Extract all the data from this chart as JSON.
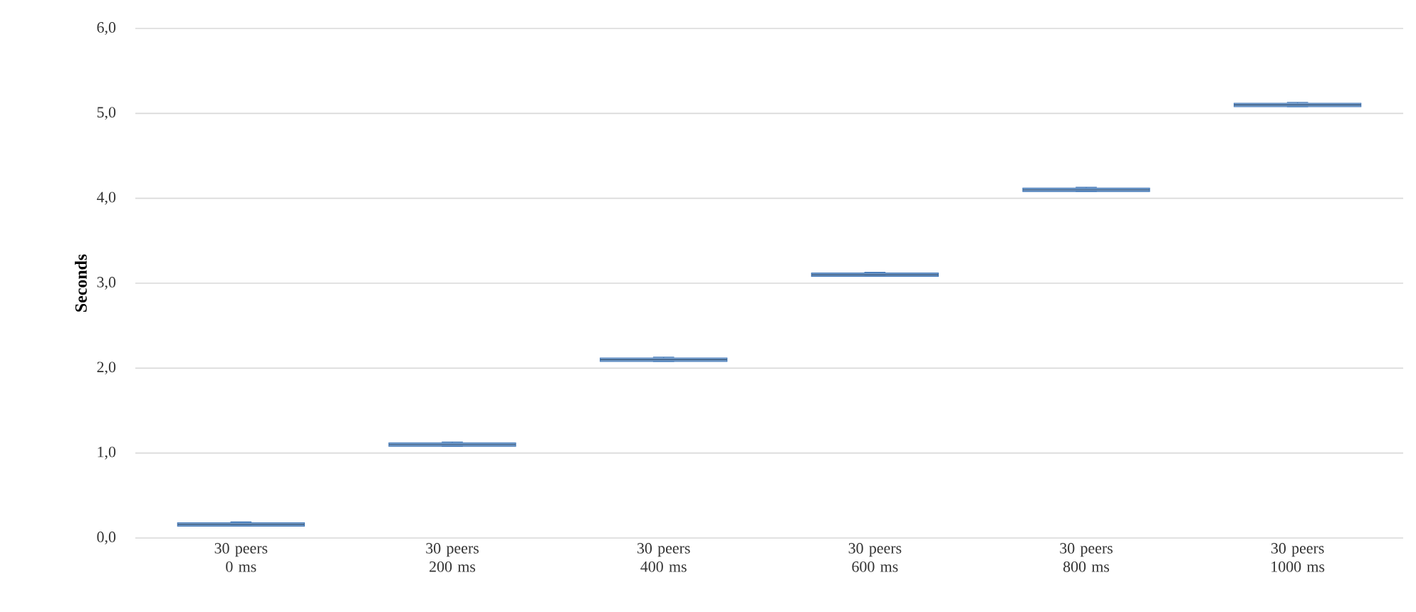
{
  "chart_data": {
    "type": "box",
    "ylabel": "**Seconds**",
    "categories": [
      "30 peers 0 ms",
      "30 peers 200 ms",
      "30 peers 400 ms",
      "30 peers 600 ms",
      "30 peers 800 ms",
      "30 peers 1000 ms"
    ],
    "color": "#4a7ebb",
    "boxes": [
      {
        "low": 0.14,
        "q1": 0.14,
        "median": 0.16,
        "q3": 0.18,
        "high": 0.19
      },
      {
        "low": 1.08,
        "q1": 1.08,
        "median": 1.1,
        "q3": 1.12,
        "high": 1.13
      },
      {
        "low": 2.08,
        "q1": 2.08,
        "median": 2.1,
        "q3": 2.12,
        "high": 2.13
      },
      {
        "low": 3.08,
        "q1": 3.08,
        "median": 3.1,
        "q3": 3.12,
        "high": 3.13
      },
      {
        "low": 4.08,
        "q1": 4.08,
        "median": 4.1,
        "q3": 4.12,
        "high": 4.13
      },
      {
        "low": 5.08,
        "q1": 5.08,
        "median": 5.1,
        "q3": 5.12,
        "high": 5.13
      }
    ],
    "ylim": [
      0,
      6
    ],
    "yticks": [
      {
        "value": 0,
        "label": "0,0"
      },
      {
        "value": 1,
        "label": "1,0"
      },
      {
        "value": 2,
        "label": "2,0"
      },
      {
        "value": 3,
        "label": "3,0"
      },
      {
        "value": 4,
        "label": "4,0"
      },
      {
        "value": 5,
        "label": "5,0"
      },
      {
        "value": 6,
        "label": "6,0"
      }
    ],
    "grid": "y"
  }
}
